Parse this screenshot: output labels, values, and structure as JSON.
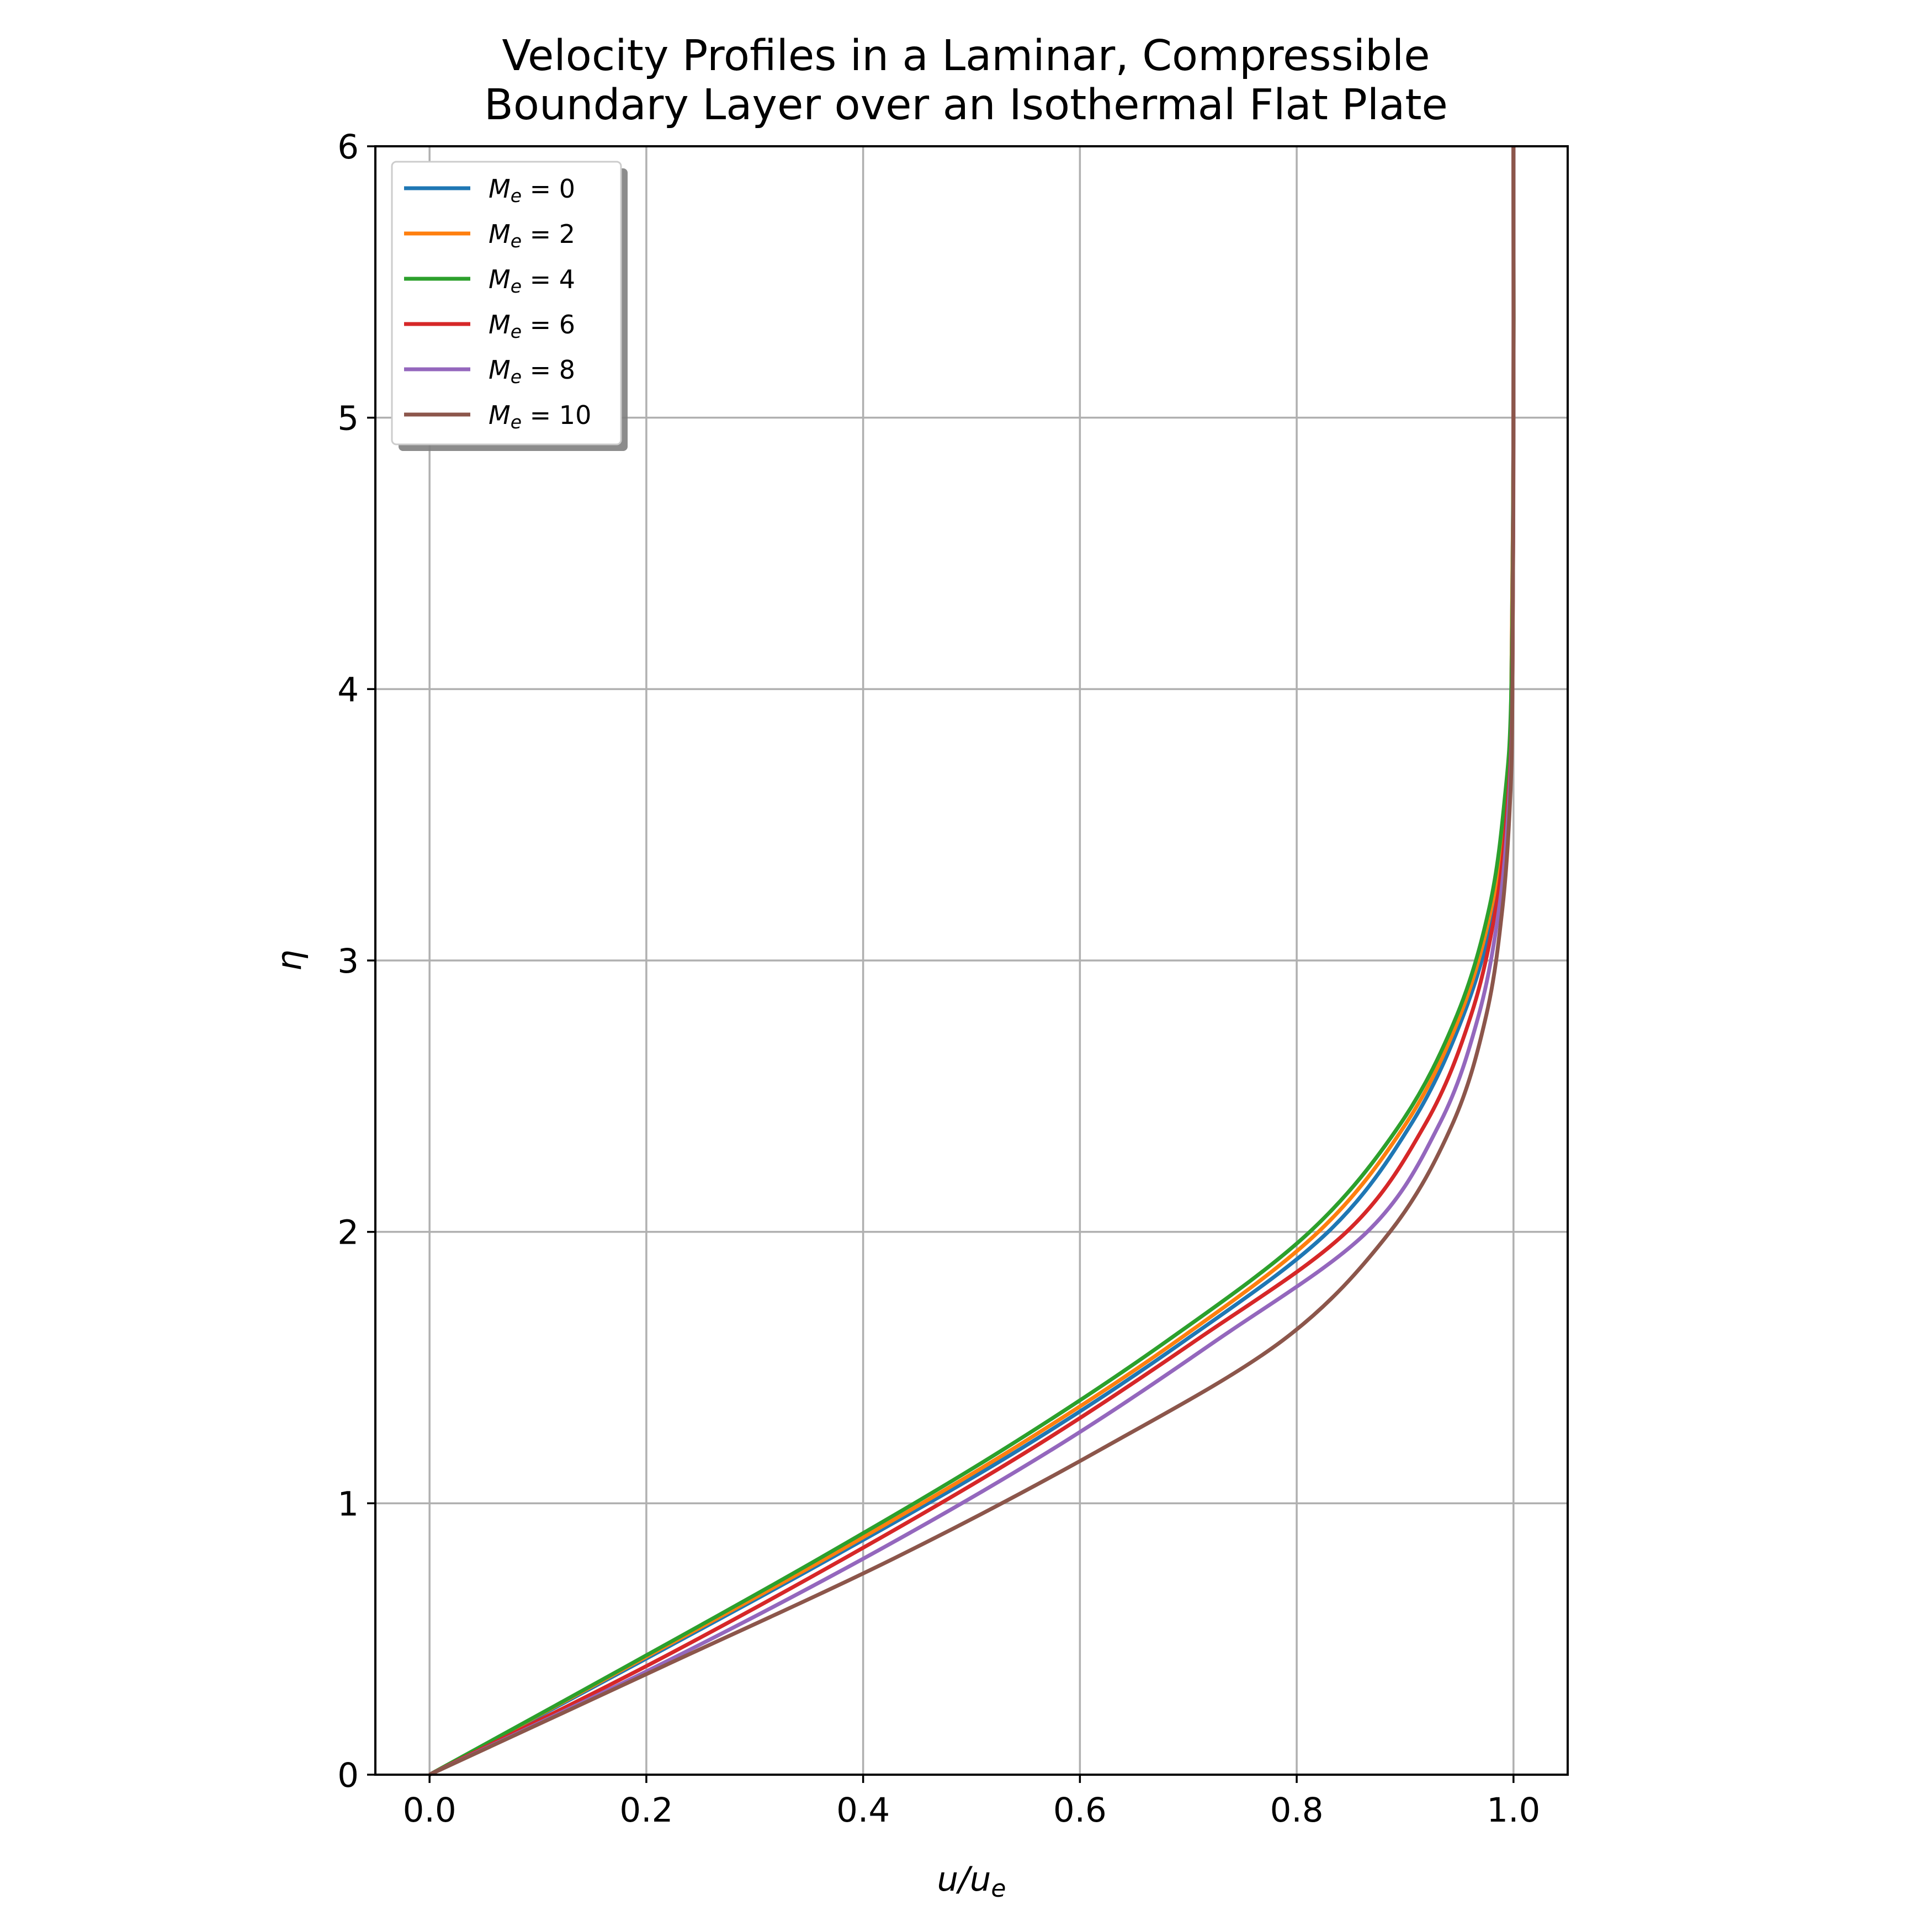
{
  "chart_data": {
    "type": "line",
    "title_lines": [
      "Velocity Profiles in a Laminar, Compressible",
      "Boundary Layer over an Isothermal Flat Plate"
    ],
    "xlabel": {
      "main": "u/u",
      "sub": "e"
    },
    "ylabel": "η",
    "xlim": [
      -0.05,
      1.05
    ],
    "ylim": [
      0,
      6
    ],
    "xticks": [
      0.0,
      0.2,
      0.4,
      0.6,
      0.8,
      1.0
    ],
    "xtick_labels": [
      "0.0",
      "0.2",
      "0.4",
      "0.6",
      "0.8",
      "1.0"
    ],
    "yticks": [
      0,
      1,
      2,
      3,
      4,
      5,
      6
    ],
    "ytick_labels": [
      "0",
      "1",
      "2",
      "3",
      "4",
      "5",
      "6"
    ],
    "grid": true,
    "legend_position": "top-left",
    "series": [
      {
        "label_sym": "M",
        "label_sub": "e",
        "label_rest": " = 0",
        "color": "#1f77b4",
        "eta": [
          0,
          0.4,
          0.8,
          1.2,
          1.6,
          2.0,
          2.4,
          2.8,
          3.2,
          3.6,
          4.0,
          5.0,
          6.0
        ],
        "u": [
          0,
          0.187,
          0.371,
          0.545,
          0.697,
          0.829,
          0.906,
          0.954,
          0.983,
          0.995,
          0.998,
          1.0,
          1.0
        ]
      },
      {
        "label_sym": "M",
        "label_sub": "e",
        "label_rest": " = 2",
        "color": "#ff7f0e",
        "eta": [
          0,
          0.4,
          0.8,
          1.2,
          1.6,
          2.0,
          2.4,
          2.8,
          3.2,
          3.6,
          4.0,
          5.0,
          6.0
        ],
        "u": [
          0,
          0.184,
          0.367,
          0.538,
          0.69,
          0.82,
          0.901,
          0.951,
          0.98,
          0.994,
          0.998,
          1.0,
          1.0
        ]
      },
      {
        "label_sym": "M",
        "label_sub": "e",
        "label_rest": " = 4",
        "color": "#2ca02c",
        "eta": [
          0,
          0.4,
          0.8,
          1.2,
          1.6,
          2.0,
          2.4,
          2.8,
          3.2,
          3.6,
          4.0,
          5.0,
          6.0
        ],
        "u": [
          0,
          0.182,
          0.361,
          0.53,
          0.681,
          0.812,
          0.896,
          0.948,
          0.978,
          0.992,
          0.998,
          1.0,
          1.0
        ]
      },
      {
        "label_sym": "M",
        "label_sub": "e",
        "label_rest": " = 6",
        "color": "#d62728",
        "eta": [
          0,
          0.4,
          0.8,
          1.2,
          1.6,
          2.0,
          2.4,
          2.8,
          3.2,
          3.6,
          4.0,
          5.0,
          6.0
        ],
        "u": [
          0,
          0.2,
          0.384,
          0.555,
          0.707,
          0.846,
          0.919,
          0.961,
          0.984,
          0.995,
          0.999,
          1.0,
          1.0
        ]
      },
      {
        "label_sym": "M",
        "label_sub": "e",
        "label_rest": " = 8",
        "color": "#9467bd",
        "eta": [
          0,
          0.4,
          0.8,
          1.2,
          1.6,
          2.0,
          2.4,
          2.8,
          3.2,
          3.6,
          4.0,
          5.0,
          6.0
        ],
        "u": [
          0,
          0.21,
          0.402,
          0.575,
          0.726,
          0.865,
          0.932,
          0.968,
          0.987,
          0.996,
          0.999,
          1.0,
          1.0
        ]
      },
      {
        "label_sym": "M",
        "label_sub": "e",
        "label_rest": " = 10",
        "color": "#8c564b",
        "eta": [
          0,
          0.4,
          0.8,
          1.2,
          1.6,
          2.0,
          2.4,
          2.8,
          3.2,
          3.6,
          4.0,
          5.0,
          6.0
        ],
        "u": [
          0,
          0.216,
          0.43,
          0.62,
          0.787,
          0.886,
          0.944,
          0.975,
          0.99,
          0.997,
          0.999,
          1.0,
          1.0
        ]
      }
    ]
  }
}
